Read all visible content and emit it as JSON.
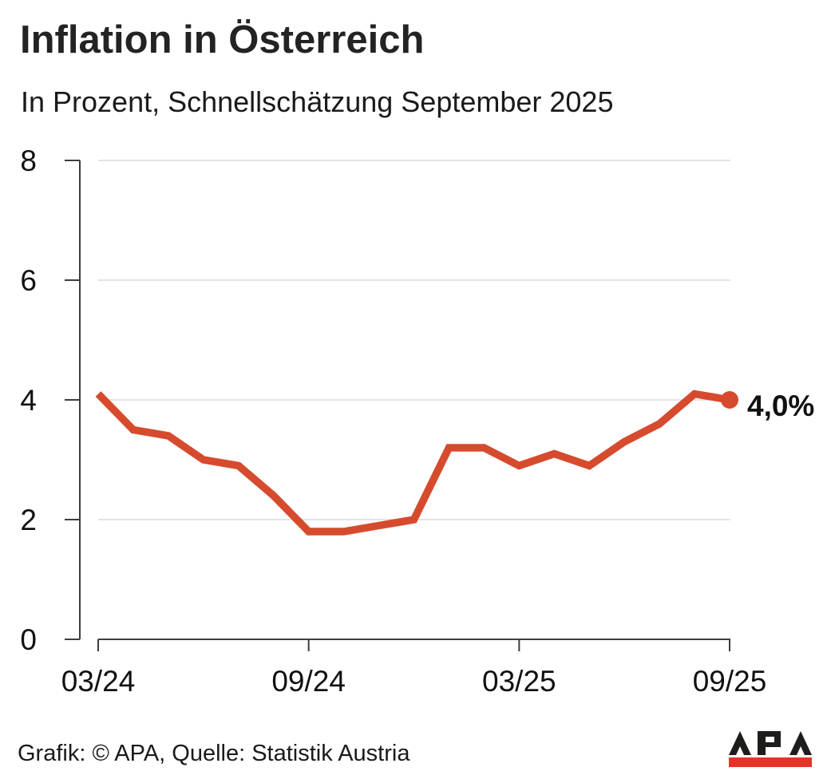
{
  "header": {
    "title": "Inflation in Österreich",
    "subtitle": "In Prozent, Schnellschätzung September 2025"
  },
  "chart_data": {
    "type": "line",
    "title": "Inflation in Österreich",
    "subtitle": "In Prozent, Schnellschätzung September 2025",
    "unit": "Prozent",
    "categories": [
      "03/24",
      "04/24",
      "05/24",
      "06/24",
      "07/24",
      "08/24",
      "09/24",
      "10/24",
      "11/24",
      "12/24",
      "01/25",
      "02/25",
      "03/25",
      "04/25",
      "05/25",
      "06/25",
      "07/25",
      "08/25",
      "09/25"
    ],
    "values": [
      4.1,
      3.5,
      3.4,
      3.0,
      2.9,
      2.4,
      1.8,
      1.8,
      1.9,
      2.0,
      3.2,
      3.2,
      2.9,
      3.1,
      2.9,
      3.3,
      3.6,
      4.1,
      4.0
    ],
    "end_label": "4,0%",
    "xtick_indices": [
      0,
      6,
      12,
      18
    ],
    "xtick_labels": [
      "03/24",
      "09/24",
      "03/25",
      "09/25"
    ],
    "ytick_values": [
      0,
      2,
      4,
      6,
      8
    ],
    "ytick_labels": [
      "0",
      "2",
      "4",
      "6",
      "8"
    ],
    "ylim": [
      0,
      8
    ],
    "grid": "horizontal",
    "legend": "none",
    "line_color": "#d64b2d",
    "axis_color": "#3d3d3d",
    "grid_color": "#dbdbdb",
    "tick_label_color": "#111111"
  },
  "footer": {
    "credit": "Grafik: © APA, Quelle: Statistik Austria",
    "logo_text": "APA",
    "logo_letter_color": "#1d1d1b",
    "logo_bar_color": "#e63328"
  }
}
